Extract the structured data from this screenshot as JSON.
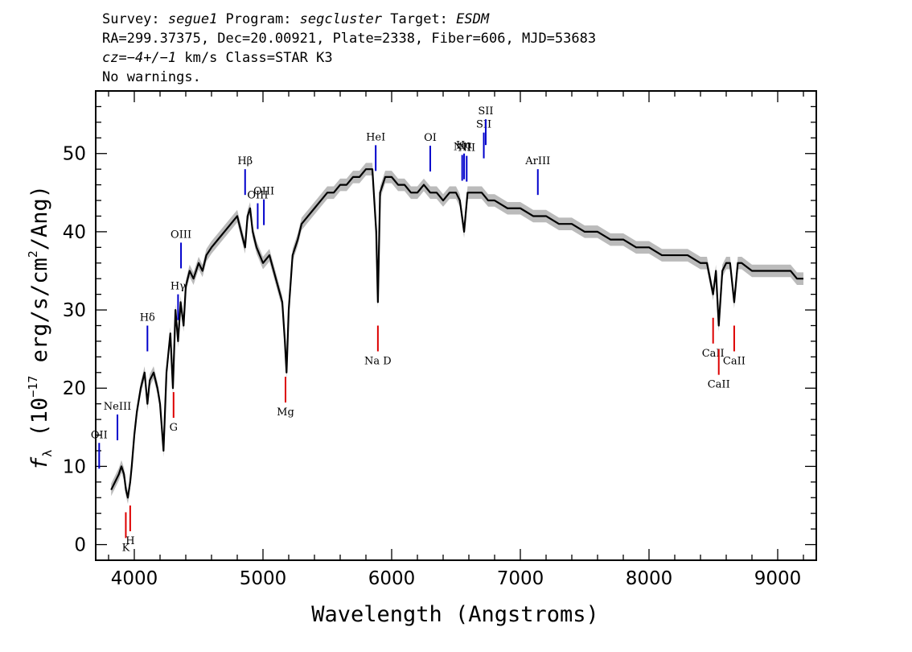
{
  "header": {
    "line1": {
      "survey_label": "Survey: ",
      "survey": "segue1",
      "program_label": " Program: ",
      "program": "segcluster",
      "target_label": " Target: ",
      "target": "ESDM"
    },
    "line2": "RA=299.37375, Dec=20.00921, Plate=2338, Fiber=606, MJD=53683",
    "line3": {
      "cz_label": "cz",
      "cz_value": "=−4+/−1",
      "cz_unit": " km/s Class=STAR K3"
    },
    "line4": "No warnings."
  },
  "chart_data": {
    "type": "line",
    "xlabel": "Wavelength (Angstroms)",
    "ylabel": "f_λ (10^-17 erg/s/cm^2/Ang)",
    "xlim": [
      3700,
      9300
    ],
    "ylim": [
      -2,
      58
    ],
    "x_ticks": [
      4000,
      5000,
      6000,
      7000,
      8000,
      9000
    ],
    "y_ticks": [
      0,
      10,
      20,
      30,
      40,
      50
    ],
    "series": [
      {
        "color": "#000000",
        "error_color": "#bbbbbb",
        "x": [
          3820,
          3850,
          3880,
          3900,
          3920,
          3935,
          3950,
          3968,
          3980,
          4000,
          4020,
          4050,
          4080,
          4102,
          4120,
          4150,
          4180,
          4200,
          4227,
          4250,
          4280,
          4300,
          4320,
          4340,
          4360,
          4383,
          4400,
          4430,
          4460,
          4500,
          4530,
          4560,
          4600,
          4650,
          4700,
          4750,
          4800,
          4830,
          4861,
          4880,
          4900,
          4920,
          4950,
          5000,
          5050,
          5100,
          5150,
          5170,
          5183,
          5200,
          5230,
          5270,
          5300,
          5350,
          5400,
          5450,
          5500,
          5550,
          5600,
          5650,
          5700,
          5750,
          5800,
          5850,
          5880,
          5893,
          5910,
          5950,
          6000,
          6050,
          6100,
          6150,
          6200,
          6250,
          6300,
          6350,
          6400,
          6450,
          6500,
          6530,
          6563,
          6590,
          6620,
          6650,
          6700,
          6750,
          6800,
          6900,
          7000,
          7100,
          7200,
          7300,
          7400,
          7500,
          7600,
          7700,
          7800,
          7900,
          8000,
          8100,
          8200,
          8300,
          8400,
          8450,
          8498,
          8520,
          8542,
          8570,
          8600,
          8630,
          8662,
          8690,
          8720,
          8800,
          8900,
          9000,
          9100,
          9150,
          9200
        ],
        "y": [
          7,
          8,
          9,
          10,
          9,
          7,
          6,
          8,
          10,
          14,
          17,
          20,
          22,
          18,
          21,
          22,
          20,
          18,
          12,
          22,
          27,
          20,
          30,
          26,
          31,
          28,
          33,
          35,
          34,
          36,
          35,
          37,
          38,
          39,
          40,
          41,
          42,
          40,
          38,
          42,
          43,
          40,
          38,
          36,
          37,
          34,
          31,
          26,
          22,
          30,
          37,
          39,
          41,
          42,
          43,
          44,
          45,
          45,
          46,
          46,
          47,
          47,
          48,
          48,
          40,
          31,
          45,
          47,
          47,
          46,
          46,
          45,
          45,
          46,
          45,
          45,
          44,
          45,
          45,
          44,
          40,
          45,
          45,
          45,
          45,
          44,
          44,
          43,
          43,
          42,
          42,
          41,
          41,
          40,
          40,
          39,
          39,
          38,
          38,
          37,
          37,
          37,
          36,
          36,
          32,
          35,
          28,
          35,
          36,
          36,
          31,
          36,
          36,
          35,
          35,
          35,
          35,
          34,
          34
        ]
      }
    ],
    "emission_lines": [
      {
        "label": "OII",
        "x": 3727
      },
      {
        "label": "NeIII",
        "x": 3869
      },
      {
        "label": "Hδ",
        "x": 4102
      },
      {
        "label": "Hγ",
        "x": 4340
      },
      {
        "label": "OIII",
        "x": 4363
      },
      {
        "label": "Hβ",
        "x": 4861
      },
      {
        "label": "OIII",
        "x": 4959
      },
      {
        "label": "OIII",
        "x": 5007
      },
      {
        "label": "HeI",
        "x": 5876
      },
      {
        "label": "OI",
        "x": 6300
      },
      {
        "label": "NII",
        "x": 6548
      },
      {
        "label": "Hα",
        "x": 6563
      },
      {
        "label": "NII",
        "x": 6583
      },
      {
        "label": "SII",
        "x": 6716
      },
      {
        "label": "SII",
        "x": 6731
      },
      {
        "label": "ArIII",
        "x": 7136
      }
    ],
    "absorption_lines": [
      {
        "label": "K",
        "x": 3934
      },
      {
        "label": "H",
        "x": 3968
      },
      {
        "label": "G",
        "x": 4305
      },
      {
        "label": "Mg",
        "x": 5175
      },
      {
        "label": "Na D",
        "x": 5893
      },
      {
        "label": "CaII",
        "x": 8498
      },
      {
        "label": "CaII",
        "x": 8542
      },
      {
        "label": "CaII",
        "x": 8662
      }
    ]
  }
}
